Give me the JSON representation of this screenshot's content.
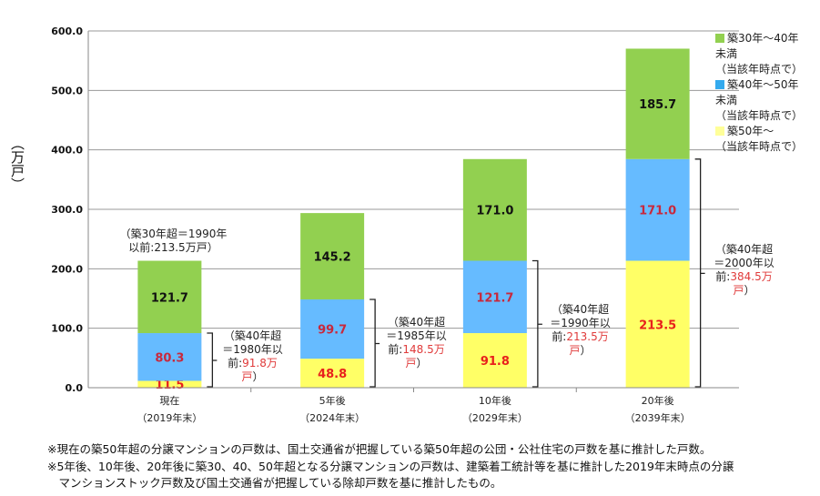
{
  "chart_data": {
    "type": "bar",
    "stacked": true,
    "ylabel": "（万戸）",
    "ylim": [
      0,
      600
    ],
    "yticks": [
      "0.0",
      "100.0",
      "200.0",
      "300.0",
      "400.0",
      "500.0",
      "600.0"
    ],
    "categories": [
      [
        "現在",
        "（2019年末）"
      ],
      [
        "5年後",
        "（2024年末）"
      ],
      [
        "10年後",
        "（2029年末）"
      ],
      [
        "20年後",
        "（2039年末）"
      ]
    ],
    "series": [
      {
        "name": "築50年～（当該年時点で）",
        "color": "#ffff66",
        "labelColor": "#e8201c",
        "values": [
          11.5,
          48.8,
          91.8,
          213.5
        ],
        "labels": [
          "11.5",
          "48.8",
          "91.8",
          "213.5"
        ]
      },
      {
        "name": "築40年～50年未満（当該年時点で）",
        "color": "#66bbff",
        "labelColor": "#c8283c",
        "values": [
          80.3,
          99.7,
          121.7,
          171.0
        ],
        "labels": [
          "80.3",
          "99.7",
          "121.7",
          "171.0"
        ]
      },
      {
        "name": "築30年～40年未満（当該年時点で）",
        "color": "#92d050",
        "labelColor": "#111111",
        "values": [
          121.7,
          145.2,
          171.0,
          185.7
        ],
        "labels": [
          "121.7",
          "145.2",
          "171.0",
          "185.7"
        ]
      }
    ],
    "legend": {
      "placement": "top-right",
      "entries": [
        {
          "l1": "築30年～40年",
          "l2": "未満",
          "l3": "（当該年時点で）",
          "color": "#92d050"
        },
        {
          "l1": "築40年～50年",
          "l2": "未満",
          "l3": "（当該年時点で）",
          "color": "#33aaee"
        },
        {
          "l1": "築50年～",
          "l3": "（当該年時点で）",
          "color": "#ffff99"
        }
      ]
    },
    "annotations": {
      "top": {
        "l1": "（築30年超＝1990年",
        "l2": "以前:213.5万戸）"
      },
      "brackets": [
        {
          "l1": "（築40年超",
          "l2": "＝1980年以",
          "l3a": "前:",
          "l3b": "91.8万",
          "l4a": "戸",
          "l4b": "）"
        },
        {
          "l1": "（築40年超",
          "l2": "＝1985年以",
          "l3a": "前:",
          "l3b": "148.5万",
          "l4a": "戸",
          "l4b": "）"
        },
        {
          "l1": "（築40年超",
          "l2": "＝1990年以",
          "l3a": "前:",
          "l3b": "213.5万",
          "l4a": "戸",
          "l4b": "）"
        },
        {
          "l1": "（築40年超",
          "l2": "＝2000年以",
          "l3a": "前:",
          "l3b": "384.5万",
          "l4a": "戸",
          "l4b": "）"
        }
      ]
    }
  },
  "footnotes": [
    "※現在の築50年超の分譲マンションの戸数は、国土交通省が把握している築50年超の公団・公社住宅の戸数を基に推計した戸数。",
    "※5年後、10年後、20年後に築30、40、50年超となる分譲マンションの戸数は、建築着工統計等を基に推計した2019年末時点の分譲",
    "　マンションストック戸数及び国土交通省が把握している除却戸数を基に推計したもの。"
  ]
}
